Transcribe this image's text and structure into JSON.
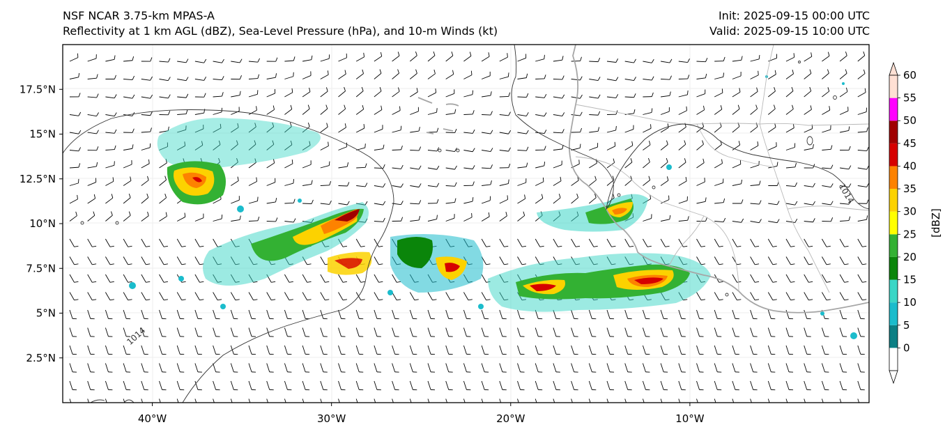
{
  "title": {
    "left_line1": "NSF NCAR 3.75-km MPAS-A",
    "left_line2": "Reflectivity at 1 km AGL (dBZ), Sea-Level Pressure (hPa), and 10-m Winds (kt)",
    "right_line1": "Init: 2025-09-15 00:00 UTC",
    "right_line2": "Valid: 2025-09-15 10:00 UTC"
  },
  "map": {
    "lon_range": [
      -45,
      0
    ],
    "lat_range": [
      0,
      20
    ],
    "lat_ticks": [
      {
        "value": 17.5,
        "label": "17.5°N"
      },
      {
        "value": 15,
        "label": "15°N"
      },
      {
        "value": 12.5,
        "label": "12.5°N"
      },
      {
        "value": 10,
        "label": "10°N"
      },
      {
        "value": 7.5,
        "label": "7.5°N"
      },
      {
        "value": 5,
        "label": "5°N"
      },
      {
        "value": 2.5,
        "label": "2.5°N"
      }
    ],
    "lon_ticks": [
      {
        "value": -40,
        "label": "40°W"
      },
      {
        "value": -30,
        "label": "30°W"
      },
      {
        "value": -20,
        "label": "20°W"
      },
      {
        "value": -10,
        "label": "10°W"
      }
    ],
    "isobar_labels": [
      {
        "text": "1014",
        "lon": -40.8,
        "lat": 3.6,
        "angle": -42
      },
      {
        "text": "1014",
        "lon": -1.4,
        "lat": 11.6,
        "angle": 60
      }
    ]
  },
  "colorbar": {
    "label": "[dBZ]",
    "ticks": [
      "0",
      "5",
      "10",
      "15",
      "20",
      "25",
      "30",
      "35",
      "40",
      "45",
      "50",
      "55",
      "60"
    ],
    "colors": [
      "#ffffff",
      "#0c7f84",
      "#1bbccc",
      "#3ad6c6",
      "#0a850a",
      "#33b133",
      "#ffff00",
      "#fcd200",
      "#fd8200",
      "#d60000",
      "#a00000",
      "#ff00ff",
      "#ffe0d4"
    ]
  }
}
